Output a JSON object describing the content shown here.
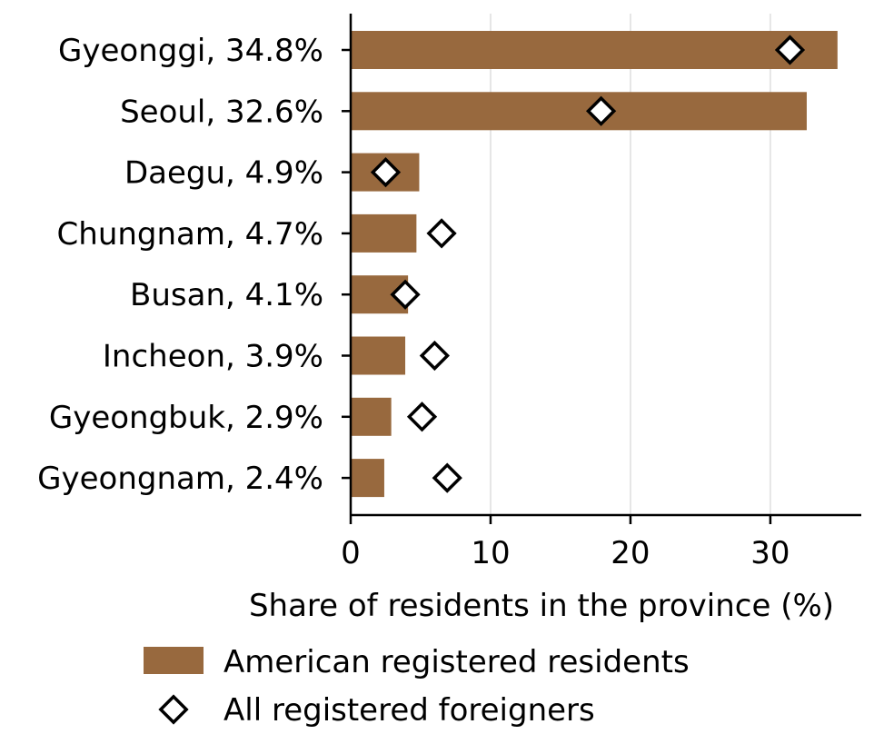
{
  "chart_data": {
    "type": "bar",
    "orientation": "horizontal",
    "categories": [
      "Gyeonggi, 34.8%",
      "Seoul, 32.6%",
      "Daegu, 4.9%",
      "Chungnam, 4.7%",
      "Busan, 4.1%",
      "Incheon, 3.9%",
      "Gyeongbuk, 2.9%",
      "Gyeongnam, 2.4%"
    ],
    "series": [
      {
        "name": "American registered residents",
        "mark": "bar",
        "color": "#98693E",
        "values": [
          34.8,
          32.6,
          4.9,
          4.7,
          4.1,
          3.9,
          2.9,
          2.4
        ]
      },
      {
        "name": "All registered foreigners",
        "mark": "diamond",
        "color": "#000000",
        "values": [
          31.4,
          17.9,
          2.5,
          6.5,
          3.9,
          6.0,
          5.1,
          6.9
        ]
      }
    ],
    "xlabel": "Share of residents in the province (%)",
    "ylabel": "",
    "title": "",
    "xlim": [
      0,
      36.5
    ],
    "xticks": [
      0,
      10,
      20,
      30
    ],
    "xtick_labels": [
      "0",
      "10",
      "20",
      "30"
    ],
    "grid": "vertical",
    "legend": "bottom"
  }
}
